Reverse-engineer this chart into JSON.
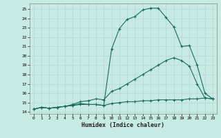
{
  "xlabel": "Humidex (Indice chaleur)",
  "ylabel": "",
  "bg_color": "#c8eae4",
  "line_color": "#1a6b5a",
  "grid_color": "#b0d8d0",
  "xlim": [
    -0.5,
    23.5
  ],
  "ylim": [
    13.8,
    25.6
  ],
  "yticks": [
    14,
    15,
    16,
    17,
    18,
    19,
    20,
    21,
    22,
    23,
    24,
    25
  ],
  "xticks": [
    0,
    1,
    2,
    3,
    4,
    5,
    6,
    7,
    8,
    9,
    10,
    11,
    12,
    13,
    14,
    15,
    16,
    17,
    18,
    19,
    20,
    21,
    22,
    23
  ],
  "line1_x": [
    0,
    1,
    2,
    3,
    4,
    5,
    6,
    7,
    8,
    9,
    10,
    11,
    12,
    13,
    14,
    15,
    16,
    17,
    18,
    19,
    20,
    21,
    22,
    23
  ],
  "line1_y": [
    14.3,
    14.5,
    14.4,
    14.5,
    14.6,
    14.7,
    14.9,
    14.8,
    14.8,
    14.7,
    20.7,
    22.9,
    23.9,
    24.2,
    24.9,
    25.1,
    25.1,
    24.1,
    23.1,
    21.0,
    21.1,
    19.0,
    16.0,
    15.4
  ],
  "line2_x": [
    0,
    1,
    2,
    3,
    4,
    5,
    6,
    7,
    8,
    9,
    10,
    11,
    12,
    13,
    14,
    15,
    16,
    17,
    18,
    19,
    20,
    21,
    22,
    23
  ],
  "line2_y": [
    14.3,
    14.5,
    14.4,
    14.5,
    14.6,
    14.8,
    15.1,
    15.2,
    15.4,
    15.3,
    16.2,
    16.5,
    17.0,
    17.5,
    18.0,
    18.5,
    19.0,
    19.5,
    19.8,
    19.5,
    18.9,
    17.0,
    15.5,
    15.4
  ],
  "line3_x": [
    0,
    1,
    2,
    3,
    4,
    5,
    6,
    7,
    8,
    9,
    10,
    11,
    12,
    13,
    14,
    15,
    16,
    17,
    18,
    19,
    20,
    21,
    22,
    23
  ],
  "line3_y": [
    14.3,
    14.5,
    14.4,
    14.5,
    14.6,
    14.7,
    14.8,
    14.8,
    14.8,
    14.7,
    14.9,
    15.0,
    15.1,
    15.1,
    15.2,
    15.2,
    15.3,
    15.3,
    15.3,
    15.3,
    15.4,
    15.4,
    15.5,
    15.4
  ]
}
